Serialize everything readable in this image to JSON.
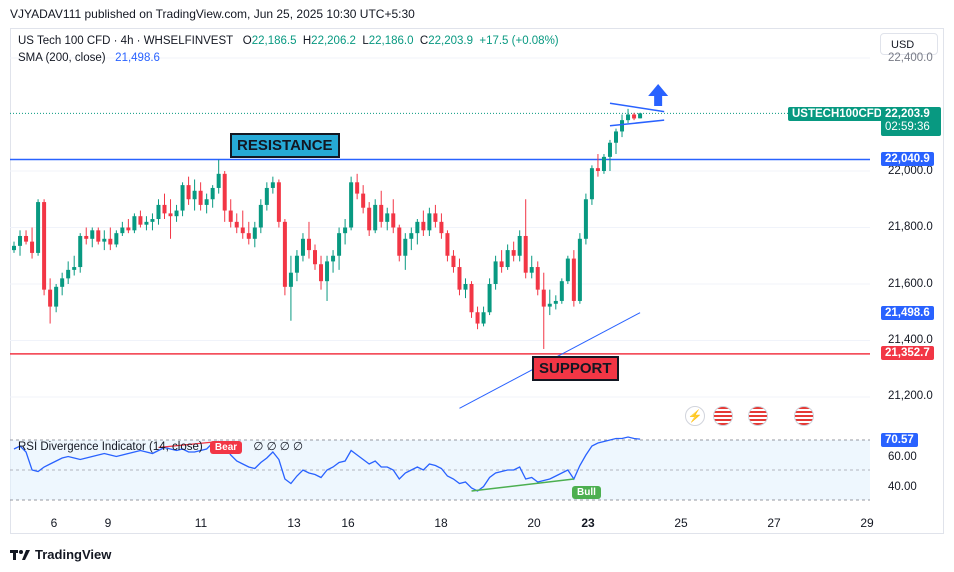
{
  "publisher": "VJYADAV111 published on TradingView.com, Jun 25, 2025 10:30 UTC+5:30",
  "legend": {
    "symbol": "US Tech 100 CFD · 4h · WHSELFINVEST",
    "open_label": "O",
    "open": "22,186.5",
    "high_label": "H",
    "high": "22,206.2",
    "low_label": "L",
    "low": "22,186.0",
    "close_label": "C",
    "close": "22,203.9",
    "change": "+17.5 (+0.08%)",
    "sma_label": "SMA (200, close)",
    "sma_value": "21,498.6"
  },
  "currency_button": "USD",
  "price_axis": {
    "ticks": [
      "22,400.0",
      "22,000.0",
      "21,800.0",
      "21,600.0",
      "21,400.0",
      "21,200.0"
    ],
    "symbol_tag": "USTECH100CFD",
    "last_price": "22,203.9",
    "countdown": "02:59:36",
    "resistance_price": "22,040.9",
    "sma_price": "21,498.6",
    "support_price": "21,352.7"
  },
  "annotations": {
    "resistance": "RESISTANCE",
    "support": "SUPPORT",
    "bear": "Bear",
    "bull": "Bull"
  },
  "rsi": {
    "title": "RSI Divergence Indicator (14, close)",
    "placeholders": "∅ ∅ ∅ ∅",
    "value": "70.57",
    "ticks": [
      "60.00",
      "40.00"
    ]
  },
  "x_axis": {
    "ticks": [
      "6",
      "9",
      "11",
      "13",
      "16",
      "18",
      "20",
      "23",
      "25",
      "27",
      "29"
    ]
  },
  "footer": {
    "brand": "TradingView"
  },
  "colors": {
    "up": "#089981",
    "down": "#f23645",
    "resistance_line": "#2962ff",
    "support_line": "#f23645",
    "sma": "#2962ff",
    "rsi_line": "#2962ff",
    "resistance_fill": "#26a9d6",
    "support_fill": "#f23645"
  },
  "chart_data": {
    "type": "candlestick",
    "timeframe": "4h",
    "price_range": [
      21100,
      22400
    ],
    "resistance": 22040.9,
    "support": 21352.7,
    "sma_200": 21498.6,
    "candles": [
      [
        21720,
        21750,
        21710,
        21735
      ],
      [
        21735,
        21790,
        21700,
        21770
      ],
      [
        21770,
        21790,
        21740,
        21750
      ],
      [
        21750,
        21800,
        21690,
        21710
      ],
      [
        21710,
        21900,
        21700,
        21890
      ],
      [
        21890,
        21900,
        21560,
        21580
      ],
      [
        21580,
        21620,
        21460,
        21520
      ],
      [
        21520,
        21600,
        21500,
        21590
      ],
      [
        21590,
        21640,
        21560,
        21620
      ],
      [
        21620,
        21680,
        21600,
        21650
      ],
      [
        21650,
        21700,
        21630,
        21660
      ],
      [
        21660,
        21780,
        21640,
        21770
      ],
      [
        21770,
        21800,
        21740,
        21760
      ],
      [
        21760,
        21800,
        21730,
        21790
      ],
      [
        21790,
        21800,
        21740,
        21750
      ],
      [
        21750,
        21790,
        21720,
        21760
      ],
      [
        21760,
        21800,
        21720,
        21740
      ],
      [
        21740,
        21790,
        21730,
        21780
      ],
      [
        21780,
        21820,
        21770,
        21800
      ],
      [
        21800,
        21830,
        21780,
        21790
      ],
      [
        21790,
        21850,
        21780,
        21840
      ],
      [
        21840,
        21860,
        21800,
        21810
      ],
      [
        21810,
        21840,
        21790,
        21820
      ],
      [
        21820,
        21850,
        21790,
        21830
      ],
      [
        21830,
        21900,
        21810,
        21880
      ],
      [
        21880,
        21920,
        21830,
        21850
      ],
      [
        21850,
        21900,
        21760,
        21840
      ],
      [
        21840,
        21880,
        21820,
        21860
      ],
      [
        21860,
        21960,
        21840,
        21950
      ],
      [
        21950,
        21980,
        21880,
        21900
      ],
      [
        21900,
        21970,
        21860,
        21930
      ],
      [
        21930,
        21960,
        21860,
        21880
      ],
      [
        21880,
        21920,
        21850,
        21900
      ],
      [
        21900,
        21950,
        21870,
        21940
      ],
      [
        21940,
        22040,
        21920,
        21990
      ],
      [
        21990,
        22000,
        21820,
        21860
      ],
      [
        21860,
        21900,
        21800,
        21820
      ],
      [
        21820,
        21850,
        21780,
        21800
      ],
      [
        21800,
        21860,
        21760,
        21780
      ],
      [
        21780,
        21820,
        21740,
        21760
      ],
      [
        21760,
        21820,
        21730,
        21800
      ],
      [
        21800,
        21900,
        21780,
        21880
      ],
      [
        21880,
        21960,
        21860,
        21940
      ],
      [
        21940,
        21980,
        21920,
        21960
      ],
      [
        21960,
        21970,
        21800,
        21820
      ],
      [
        21820,
        21830,
        21560,
        21590
      ],
      [
        21590,
        21700,
        21470,
        21640
      ],
      [
        21640,
        21720,
        21610,
        21700
      ],
      [
        21700,
        21780,
        21680,
        21760
      ],
      [
        21760,
        21820,
        21690,
        21720
      ],
      [
        21720,
        21740,
        21650,
        21670
      ],
      [
        21670,
        21700,
        21580,
        21610
      ],
      [
        21610,
        21700,
        21540,
        21680
      ],
      [
        21680,
        21720,
        21640,
        21700
      ],
      [
        21700,
        21800,
        21650,
        21780
      ],
      [
        21780,
        21830,
        21740,
        21800
      ],
      [
        21800,
        21980,
        21790,
        21960
      ],
      [
        21960,
        21990,
        21900,
        21920
      ],
      [
        21920,
        21950,
        21850,
        21870
      ],
      [
        21870,
        21890,
        21770,
        21790
      ],
      [
        21790,
        21900,
        21780,
        21880
      ],
      [
        21880,
        21930,
        21800,
        21820
      ],
      [
        21820,
        21870,
        21790,
        21850
      ],
      [
        21850,
        21900,
        21780,
        21800
      ],
      [
        21800,
        21810,
        21680,
        21700
      ],
      [
        21700,
        21780,
        21650,
        21760
      ],
      [
        21760,
        21800,
        21720,
        21780
      ],
      [
        21780,
        21830,
        21740,
        21820
      ],
      [
        21820,
        21860,
        21770,
        21790
      ],
      [
        21790,
        21870,
        21770,
        21850
      ],
      [
        21850,
        21880,
        21800,
        21820
      ],
      [
        21820,
        21850,
        21760,
        21780
      ],
      [
        21780,
        21790,
        21680,
        21700
      ],
      [
        21700,
        21720,
        21640,
        21660
      ],
      [
        21660,
        21690,
        21560,
        21580
      ],
      [
        21580,
        21620,
        21550,
        21600
      ],
      [
        21600,
        21610,
        21480,
        21500
      ],
      [
        21500,
        21520,
        21440,
        21460
      ],
      [
        21460,
        21520,
        21450,
        21500
      ],
      [
        21500,
        21620,
        21490,
        21600
      ],
      [
        21600,
        21700,
        21580,
        21680
      ],
      [
        21680,
        21720,
        21640,
        21660
      ],
      [
        21660,
        21740,
        21650,
        21720
      ],
      [
        21720,
        21750,
        21680,
        21700
      ],
      [
        21700,
        21790,
        21680,
        21770
      ],
      [
        21770,
        21900,
        21620,
        21640
      ],
      [
        21640,
        21700,
        21620,
        21660
      ],
      [
        21660,
        21680,
        21560,
        21580
      ],
      [
        21580,
        21640,
        21370,
        21520
      ],
      [
        21520,
        21580,
        21490,
        21530
      ],
      [
        21530,
        21560,
        21510,
        21540
      ],
      [
        21540,
        21620,
        21530,
        21610
      ],
      [
        21610,
        21700,
        21600,
        21690
      ],
      [
        21690,
        21720,
        21520,
        21540
      ],
      [
        21540,
        21780,
        21530,
        21760
      ],
      [
        21760,
        21920,
        21740,
        21900
      ],
      [
        21900,
        22020,
        21880,
        22010
      ],
      [
        22010,
        22060,
        21980,
        22000
      ],
      [
        22000,
        22060,
        21990,
        22050
      ],
      [
        22050,
        22110,
        22000,
        22100
      ],
      [
        22100,
        22150,
        22060,
        22140
      ],
      [
        22140,
        22200,
        22120,
        22180
      ],
      [
        22180,
        22220,
        22170,
        22200
      ],
      [
        22200,
        22206,
        22180,
        22186
      ],
      [
        22186.5,
        22206.2,
        22186,
        22203.9
      ]
    ],
    "sma_points": [
      [
        74,
        21160
      ],
      [
        104,
        21498.6
      ]
    ],
    "rsi_series": [
      64,
      66,
      62,
      50,
      49,
      52,
      54,
      56,
      58,
      59,
      58,
      57,
      58,
      59,
      60,
      61,
      60,
      59,
      60,
      61,
      62,
      63,
      62,
      61,
      63,
      65,
      64,
      63,
      64,
      62,
      62,
      63,
      64,
      68,
      69,
      66,
      60,
      56,
      54,
      52,
      51,
      55,
      58,
      62,
      57,
      44,
      41,
      46,
      50,
      48,
      47,
      45,
      50,
      52,
      55,
      56,
      63,
      60,
      57,
      54,
      56,
      52,
      52,
      50,
      44,
      48,
      50,
      52,
      50,
      54,
      53,
      51,
      46,
      44,
      41,
      42,
      38,
      36,
      39,
      45,
      48,
      49,
      50,
      50,
      52,
      44,
      45,
      42,
      43,
      44,
      46,
      48,
      50,
      44,
      53,
      60,
      66,
      68,
      69,
      70,
      71,
      71,
      72,
      71,
      70.57
    ],
    "rsi_ticks": [
      60,
      40
    ],
    "x_labels": [
      "6",
      "9",
      "11",
      "13",
      "16",
      "18",
      "20",
      "23",
      "25",
      "27",
      "29"
    ]
  }
}
